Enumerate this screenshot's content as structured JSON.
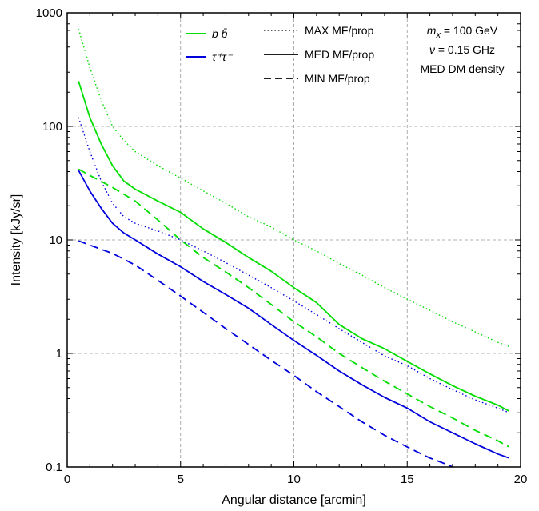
{
  "chart_data": {
    "type": "line",
    "xlabel": "Angular distance [arcmin]",
    "ylabel": "Intensity [kJy/sr]",
    "xlim": [
      0,
      20
    ],
    "ylim": [
      0.1,
      1000
    ],
    "yscale": "log",
    "grid": "dashed at x=5,10,15 and y=1,10,100",
    "x_ticks": [
      0,
      5,
      10,
      15,
      20
    ],
    "x_tick_labels": [
      "0",
      "5",
      "10",
      "15",
      "20"
    ],
    "y_ticks": [
      0.1,
      1,
      10,
      100,
      1000
    ],
    "y_tick_labels": [
      "0.1",
      "1",
      "10",
      "100",
      "1000"
    ],
    "channel_legend": [
      {
        "label": "b b̄",
        "color": "#00dd00"
      },
      {
        "label": "τ⁺τ⁻",
        "color": "#0000dd"
      }
    ],
    "style_legend": [
      {
        "label": "MAX MF/prop",
        "linestyle": "dotted"
      },
      {
        "label": "MED MF/prop",
        "linestyle": "solid"
      },
      {
        "label": "MIN MF/prop",
        "linestyle": "dashed"
      }
    ],
    "annotations": [
      "m_x = 100 GeV",
      "ν = 0.15 GHz",
      "MED DM density"
    ],
    "annotation_parts": {
      "mass_symbol": "m",
      "mass_subscript": "x",
      "mass_value": " = 100 GeV",
      "freq_symbol": "ν",
      "freq_value": " = 0.15 GHz",
      "density": "MED DM density"
    },
    "series": [
      {
        "channel": "b b̄",
        "linestyle": "dotted",
        "color": "#00dd00",
        "x": [
          0.5,
          1,
          1.5,
          2,
          2.5,
          3,
          4,
          5,
          6,
          7,
          8,
          9,
          10,
          11,
          12,
          13,
          14,
          15,
          16,
          17,
          18,
          19,
          19.5
        ],
        "y": [
          720,
          330,
          170,
          100,
          75,
          60,
          45,
          35,
          27,
          21,
          16,
          13,
          10,
          8,
          6.2,
          4.9,
          3.8,
          3.0,
          2.4,
          1.9,
          1.55,
          1.25,
          1.15
        ]
      },
      {
        "channel": "b b̄",
        "linestyle": "solid",
        "color": "#00dd00",
        "x": [
          0.5,
          1,
          1.5,
          2,
          2.5,
          3,
          4,
          5,
          6,
          7,
          8,
          9,
          10,
          11,
          12,
          13,
          14,
          15,
          16,
          17,
          18,
          19,
          19.5
        ],
        "y": [
          250,
          120,
          70,
          45,
          33,
          28,
          22,
          17.5,
          12.5,
          9.5,
          7,
          5.3,
          3.8,
          2.8,
          1.8,
          1.35,
          1.1,
          0.85,
          0.66,
          0.52,
          0.42,
          0.35,
          0.31
        ]
      },
      {
        "channel": "b b̄",
        "linestyle": "dashed",
        "color": "#00dd00",
        "x": [
          0.5,
          1,
          2,
          3,
          4,
          5,
          6,
          7,
          8,
          9,
          10,
          11,
          12,
          13,
          14,
          15,
          16,
          17,
          18,
          19,
          19.5
        ],
        "y": [
          42,
          37,
          29,
          22,
          15,
          10,
          7,
          5.2,
          3.8,
          2.7,
          1.9,
          1.4,
          1.0,
          0.75,
          0.57,
          0.44,
          0.34,
          0.27,
          0.21,
          0.17,
          0.15
        ]
      },
      {
        "channel": "τ⁺τ⁻",
        "linestyle": "dotted",
        "color": "#0000dd",
        "x": [
          0.5,
          1,
          1.5,
          2,
          2.5,
          3,
          4,
          5,
          6,
          7,
          8,
          9,
          10,
          11,
          12,
          13,
          14,
          15,
          16,
          17,
          18,
          19,
          19.5
        ],
        "y": [
          120,
          60,
          33,
          21,
          16,
          14,
          12,
          10,
          8,
          6.3,
          4.9,
          3.8,
          2.9,
          2.2,
          1.65,
          1.25,
          0.95,
          0.78,
          0.6,
          0.48,
          0.39,
          0.33,
          0.3
        ]
      },
      {
        "channel": "τ⁺τ⁻",
        "linestyle": "solid",
        "color": "#0000dd",
        "x": [
          0.5,
          1,
          1.5,
          2,
          2.5,
          3,
          4,
          5,
          6,
          7,
          8,
          9,
          10,
          11,
          12,
          13,
          14,
          15,
          16,
          17,
          18,
          19,
          19.5
        ],
        "y": [
          41,
          27,
          19,
          14,
          11.5,
          10,
          7.5,
          5.8,
          4.3,
          3.3,
          2.5,
          1.8,
          1.3,
          0.96,
          0.7,
          0.53,
          0.41,
          0.33,
          0.25,
          0.2,
          0.16,
          0.13,
          0.12
        ]
      },
      {
        "channel": "τ⁺τ⁻",
        "linestyle": "dashed",
        "color": "#0000dd",
        "x": [
          0.5,
          1,
          2,
          3,
          4,
          5,
          6,
          7,
          8,
          9,
          10,
          11,
          12,
          13,
          14,
          15,
          16,
          16.5,
          17
        ],
        "y": [
          9.8,
          9.0,
          7.6,
          6.0,
          4.4,
          3.2,
          2.3,
          1.65,
          1.2,
          0.87,
          0.64,
          0.46,
          0.34,
          0.25,
          0.19,
          0.15,
          0.12,
          0.11,
          0.1
        ]
      }
    ]
  }
}
